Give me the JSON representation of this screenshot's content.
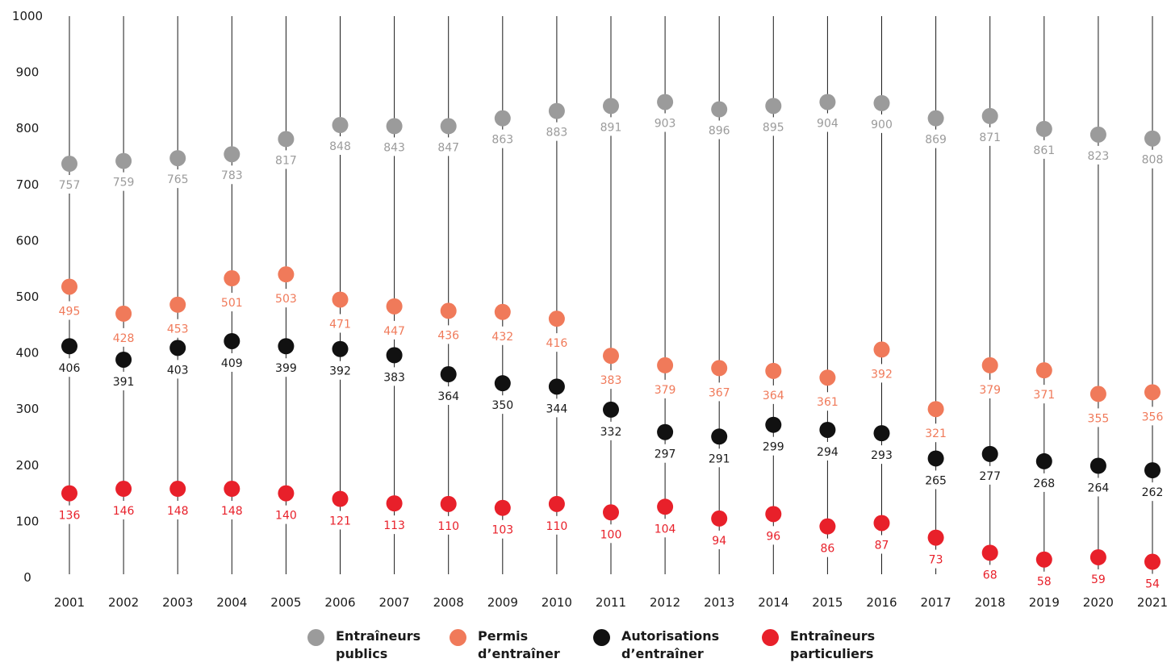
{
  "colors": {
    "entraineurs_publics": "#9b9b9b",
    "permis_d_entrainer": "#f07a5a",
    "autorisations_d_entrainer": "#111111",
    "entraineurs_particuliers": "#e8202a",
    "stem": "#1a1a1a"
  },
  "legend": {
    "items": [
      {
        "label": "Entraîneurs\npublics"
      },
      {
        "label": "Permis\nd’entraîner"
      },
      {
        "label": "Autorisations\nd’entraîner"
      },
      {
        "label": "Entraîneurs\nparticuliers"
      }
    ]
  },
  "chart_data": {
    "type": "scatter",
    "title": "",
    "xlabel": "",
    "ylabel": "",
    "ylim": [
      0,
      1000
    ],
    "yticks": [
      0,
      100,
      200,
      300,
      400,
      500,
      600,
      700,
      800,
      900,
      1000
    ],
    "grid": false,
    "legend_position": "bottom",
    "categories": [
      "2001",
      "2002",
      "2003",
      "2004",
      "2005",
      "2006",
      "2007",
      "2008",
      "2009",
      "2010",
      "2011",
      "2012",
      "2013",
      "2014",
      "2015",
      "2016",
      "2017",
      "2018",
      "2019",
      "2020",
      "2021"
    ],
    "series": [
      {
        "name": "Entraîneurs publics",
        "values": [
          757,
          759,
          765,
          783,
          817,
          848,
          843,
          847,
          863,
          883,
          891,
          903,
          896,
          895,
          904,
          900,
          869,
          871,
          861,
          823,
          808
        ],
        "marker_values": [
          737,
          742,
          747,
          754,
          781,
          806,
          804,
          804,
          818,
          831,
          840,
          847,
          834,
          840,
          847,
          845,
          818,
          822,
          799,
          789,
          782
        ]
      },
      {
        "name": "Permis d’entraîner",
        "values": [
          495,
          428,
          453,
          501,
          503,
          471,
          447,
          436,
          432,
          416,
          383,
          379,
          367,
          364,
          361,
          392,
          321,
          379,
          371,
          355,
          356
        ],
        "marker_values": [
          518,
          470,
          486,
          533,
          540,
          495,
          483,
          475,
          473,
          461,
          395,
          378,
          373,
          368,
          356,
          406,
          300,
          378,
          369,
          327,
          330
        ]
      },
      {
        "name": "Autorisations d’entraîner",
        "values": [
          406,
          391,
          403,
          409,
          399,
          392,
          383,
          364,
          350,
          344,
          332,
          297,
          291,
          299,
          294,
          293,
          265,
          277,
          268,
          264,
          262
        ],
        "marker_values": [
          412,
          388,
          409,
          421,
          412,
          407,
          396,
          362,
          346,
          340,
          299,
          259,
          251,
          272,
          263,
          257,
          212,
          220,
          207,
          199,
          191
        ]
      },
      {
        "name": "Entraîneurs particuliers",
        "values": [
          136,
          146,
          148,
          148,
          140,
          121,
          113,
          110,
          103,
          110,
          100,
          104,
          94,
          96,
          86,
          87,
          73,
          68,
          58,
          59,
          54
        ],
        "marker_values": [
          150,
          158,
          158,
          158,
          150,
          140,
          132,
          131,
          124,
          131,
          116,
          126,
          105,
          113,
          91,
          97,
          71,
          44,
          32,
          36,
          28
        ]
      }
    ]
  }
}
